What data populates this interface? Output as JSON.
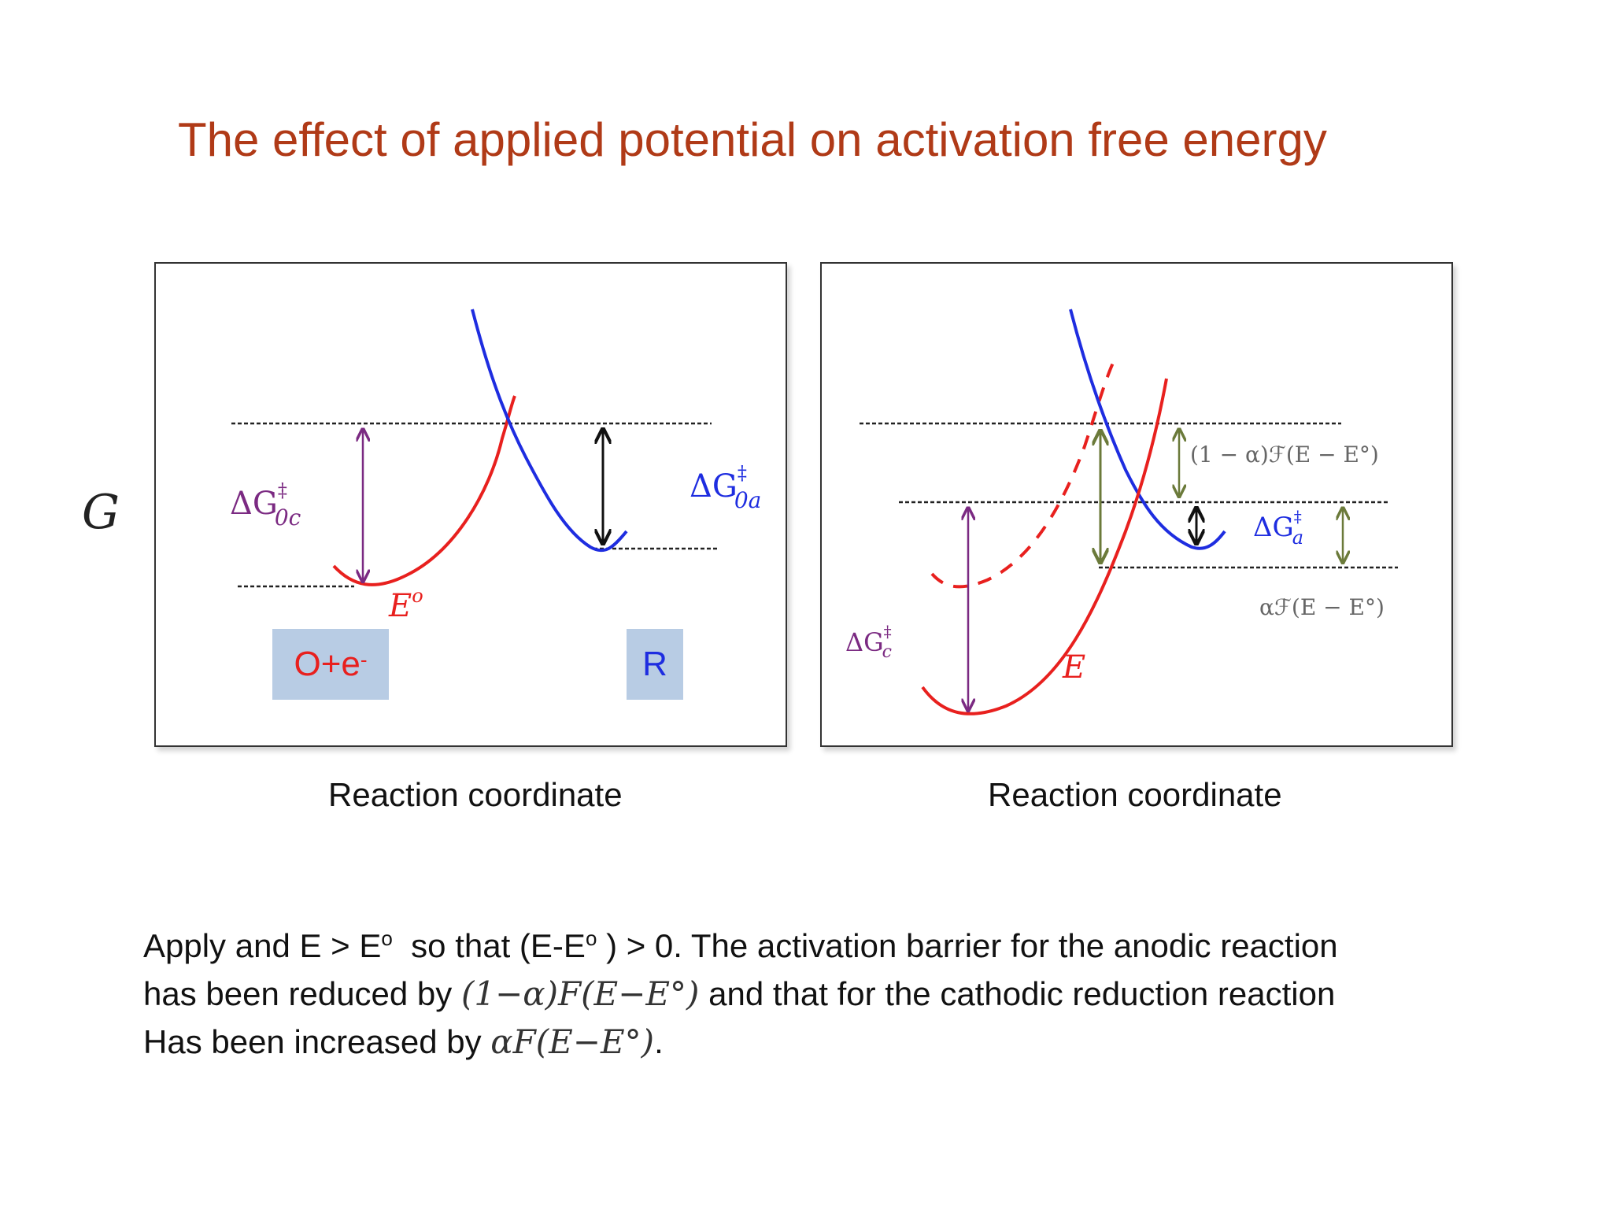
{
  "slide": {
    "title": "The effect of applied potential on activation free energy",
    "y_axis_label": "G"
  },
  "left_panel": {
    "x_axis_label": "Reaction coordinate",
    "label_dg_c": "ΔG",
    "label_dg_c_sup": "‡",
    "label_dg_c_sub": "0c",
    "label_dg_a": "ΔG",
    "label_dg_a_sup": "‡",
    "label_dg_a_sub": "0a",
    "label_potential": "E",
    "label_potential_sup": "o",
    "species_oxidized": "O+e",
    "species_oxidized_sup": "-",
    "species_reduced": "R",
    "colors": {
      "reactant_curve": "#e8201e",
      "product_curve": "#1e2de0",
      "cathodic_arrow": "#7b2a82",
      "anodic_arrow": "#111111"
    }
  },
  "right_panel": {
    "x_axis_label": "Reaction coordinate",
    "label_shift_anodic": "(1 − α)ℱ(E − E°)",
    "label_shift_cathodic": "αℱ(E − E°)",
    "label_dg_a": "ΔG",
    "label_dg_a_sup": "‡",
    "label_dg_a_sub": "a",
    "label_dg_c": "ΔG",
    "label_dg_c_sup": "‡",
    "label_dg_c_sub": "c",
    "label_potential": "E",
    "colors": {
      "shift_arrow": "#6b7a3a",
      "anodic_arrow": "#111111",
      "cathodic_arrow": "#7b2a82"
    }
  },
  "caption": {
    "line1_a": "Apply and E > E",
    "line1_sup1": "o",
    "line1_b": "  so that (E-E",
    "line1_sup2": "o",
    "line1_c": " ) > 0. The activation barrier for the anodic reaction",
    "line2_a": "has been reduced by ",
    "line2_math": "(1−α)F(E−E°)",
    "line2_b": " and that for the cathodic reduction reaction",
    "line3_a": "Has been increased by ",
    "line3_math": "αF(E−E°)",
    "line3_b": "."
  }
}
